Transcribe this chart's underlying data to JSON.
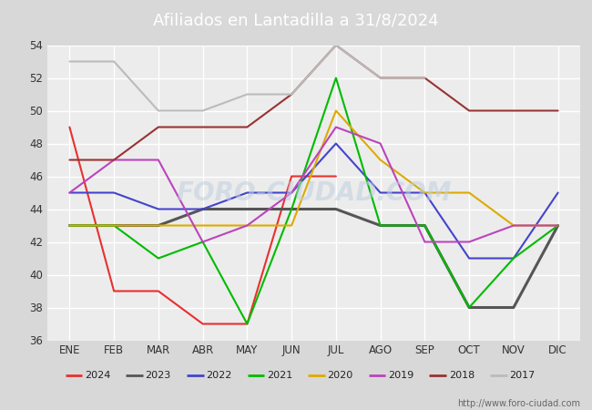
{
  "title": "Afiliados en Lantadilla a 31/8/2024",
  "months": [
    "ENE",
    "FEB",
    "MAR",
    "ABR",
    "MAY",
    "JUN",
    "JUL",
    "AGO",
    "SEP",
    "OCT",
    "NOV",
    "DIC"
  ],
  "series": {
    "2024": {
      "values": [
        49,
        39,
        39,
        37,
        37,
        46,
        46,
        null,
        null,
        null,
        null,
        null
      ],
      "color": "#e83030",
      "linewidth": 1.5
    },
    "2023": {
      "values": [
        43,
        43,
        43,
        44,
        44,
        44,
        44,
        43,
        43,
        38,
        38,
        43
      ],
      "color": "#555555",
      "linewidth": 2.2
    },
    "2022": {
      "values": [
        45,
        45,
        44,
        44,
        45,
        45,
        48,
        45,
        45,
        41,
        41,
        45
      ],
      "color": "#4444cc",
      "linewidth": 1.5
    },
    "2021": {
      "values": [
        43,
        43,
        41,
        42,
        37,
        44,
        52,
        43,
        43,
        38,
        41,
        43
      ],
      "color": "#00bb00",
      "linewidth": 1.5
    },
    "2020": {
      "values": [
        43,
        43,
        43,
        43,
        43,
        43,
        50,
        47,
        45,
        45,
        43,
        43
      ],
      "color": "#ddaa00",
      "linewidth": 1.5
    },
    "2019": {
      "values": [
        45,
        47,
        47,
        42,
        43,
        45,
        49,
        48,
        42,
        42,
        43,
        43
      ],
      "color": "#bb44bb",
      "linewidth": 1.5
    },
    "2018": {
      "values": [
        47,
        47,
        49,
        49,
        49,
        51,
        54,
        52,
        52,
        50,
        50,
        50
      ],
      "color": "#993333",
      "linewidth": 1.5
    },
    "2017": {
      "values": [
        53,
        53,
        50,
        50,
        51,
        51,
        54,
        52,
        52,
        null,
        null,
        null
      ],
      "color": "#bbbbbb",
      "linewidth": 1.5
    }
  },
  "ylim": [
    36,
    54
  ],
  "yticks": [
    36,
    38,
    40,
    42,
    44,
    46,
    48,
    50,
    52,
    54
  ],
  "bg_color": "#d8d8d8",
  "plot_bg_color": "#ececec",
  "title_bg_color": "#5599cc",
  "title_color": "white",
  "watermark": "FORO-CIUDAD.COM",
  "url": "http://www.foro-ciudad.com",
  "legend_order": [
    "2024",
    "2023",
    "2022",
    "2021",
    "2020",
    "2019",
    "2018",
    "2017"
  ]
}
